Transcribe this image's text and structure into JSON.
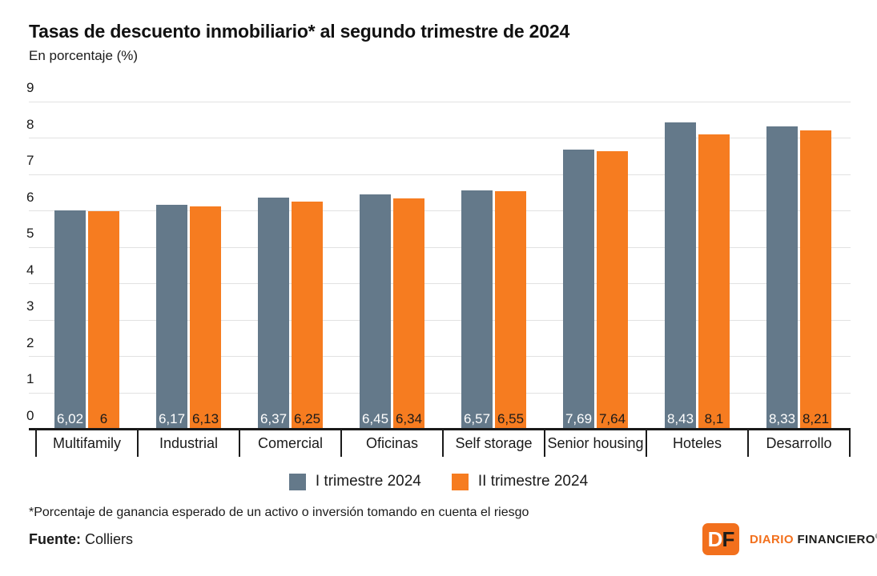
{
  "header": {
    "title": "Tasas de descuento inmobiliario* al segundo trimestre de 2024",
    "subtitle": "En porcentaje (%)"
  },
  "chart_data": {
    "type": "bar",
    "categories": [
      "Multifamily",
      "Industrial",
      "Comercial",
      "Oficinas",
      "Self storage",
      "Senior housing",
      "Hoteles",
      "Desarrollo"
    ],
    "series": [
      {
        "name": "I trimestre 2024",
        "color": "#64798A",
        "label_color": "#ffffff",
        "values": [
          6.02,
          6.17,
          6.37,
          6.45,
          6.57,
          7.69,
          8.43,
          8.33
        ],
        "labels": [
          "6,02",
          "6,17",
          "6,37",
          "6,45",
          "6,57",
          "7,69",
          "8,43",
          "8,33"
        ]
      },
      {
        "name": "II trimestre 2024",
        "color": "#F67C20",
        "label_color": "#1a1a1a",
        "values": [
          6.0,
          6.13,
          6.25,
          6.34,
          6.55,
          7.64,
          8.1,
          8.21
        ],
        "labels": [
          "6",
          "6,13",
          "6,25",
          "6,34",
          "6,55",
          "7,64",
          "8,1",
          "8,21"
        ]
      }
    ],
    "ylabel": "",
    "xlabel": "",
    "ylim": [
      0,
      9
    ],
    "yticks": [
      0,
      1,
      2,
      3,
      4,
      5,
      6,
      7,
      8,
      9
    ],
    "grid": true,
    "legend_position": "bottom"
  },
  "footnote": "*Porcentaje de ganancia esperado de un activo o inversión tomando en cuenta el riesgo",
  "source": {
    "label": "Fuente:",
    "value": " Colliers"
  },
  "logo": {
    "d": "D",
    "f": "F",
    "diario": "DIARIO",
    "financiero": "FINANCIERO",
    "mark": "®",
    "orange": "#f2701d"
  }
}
